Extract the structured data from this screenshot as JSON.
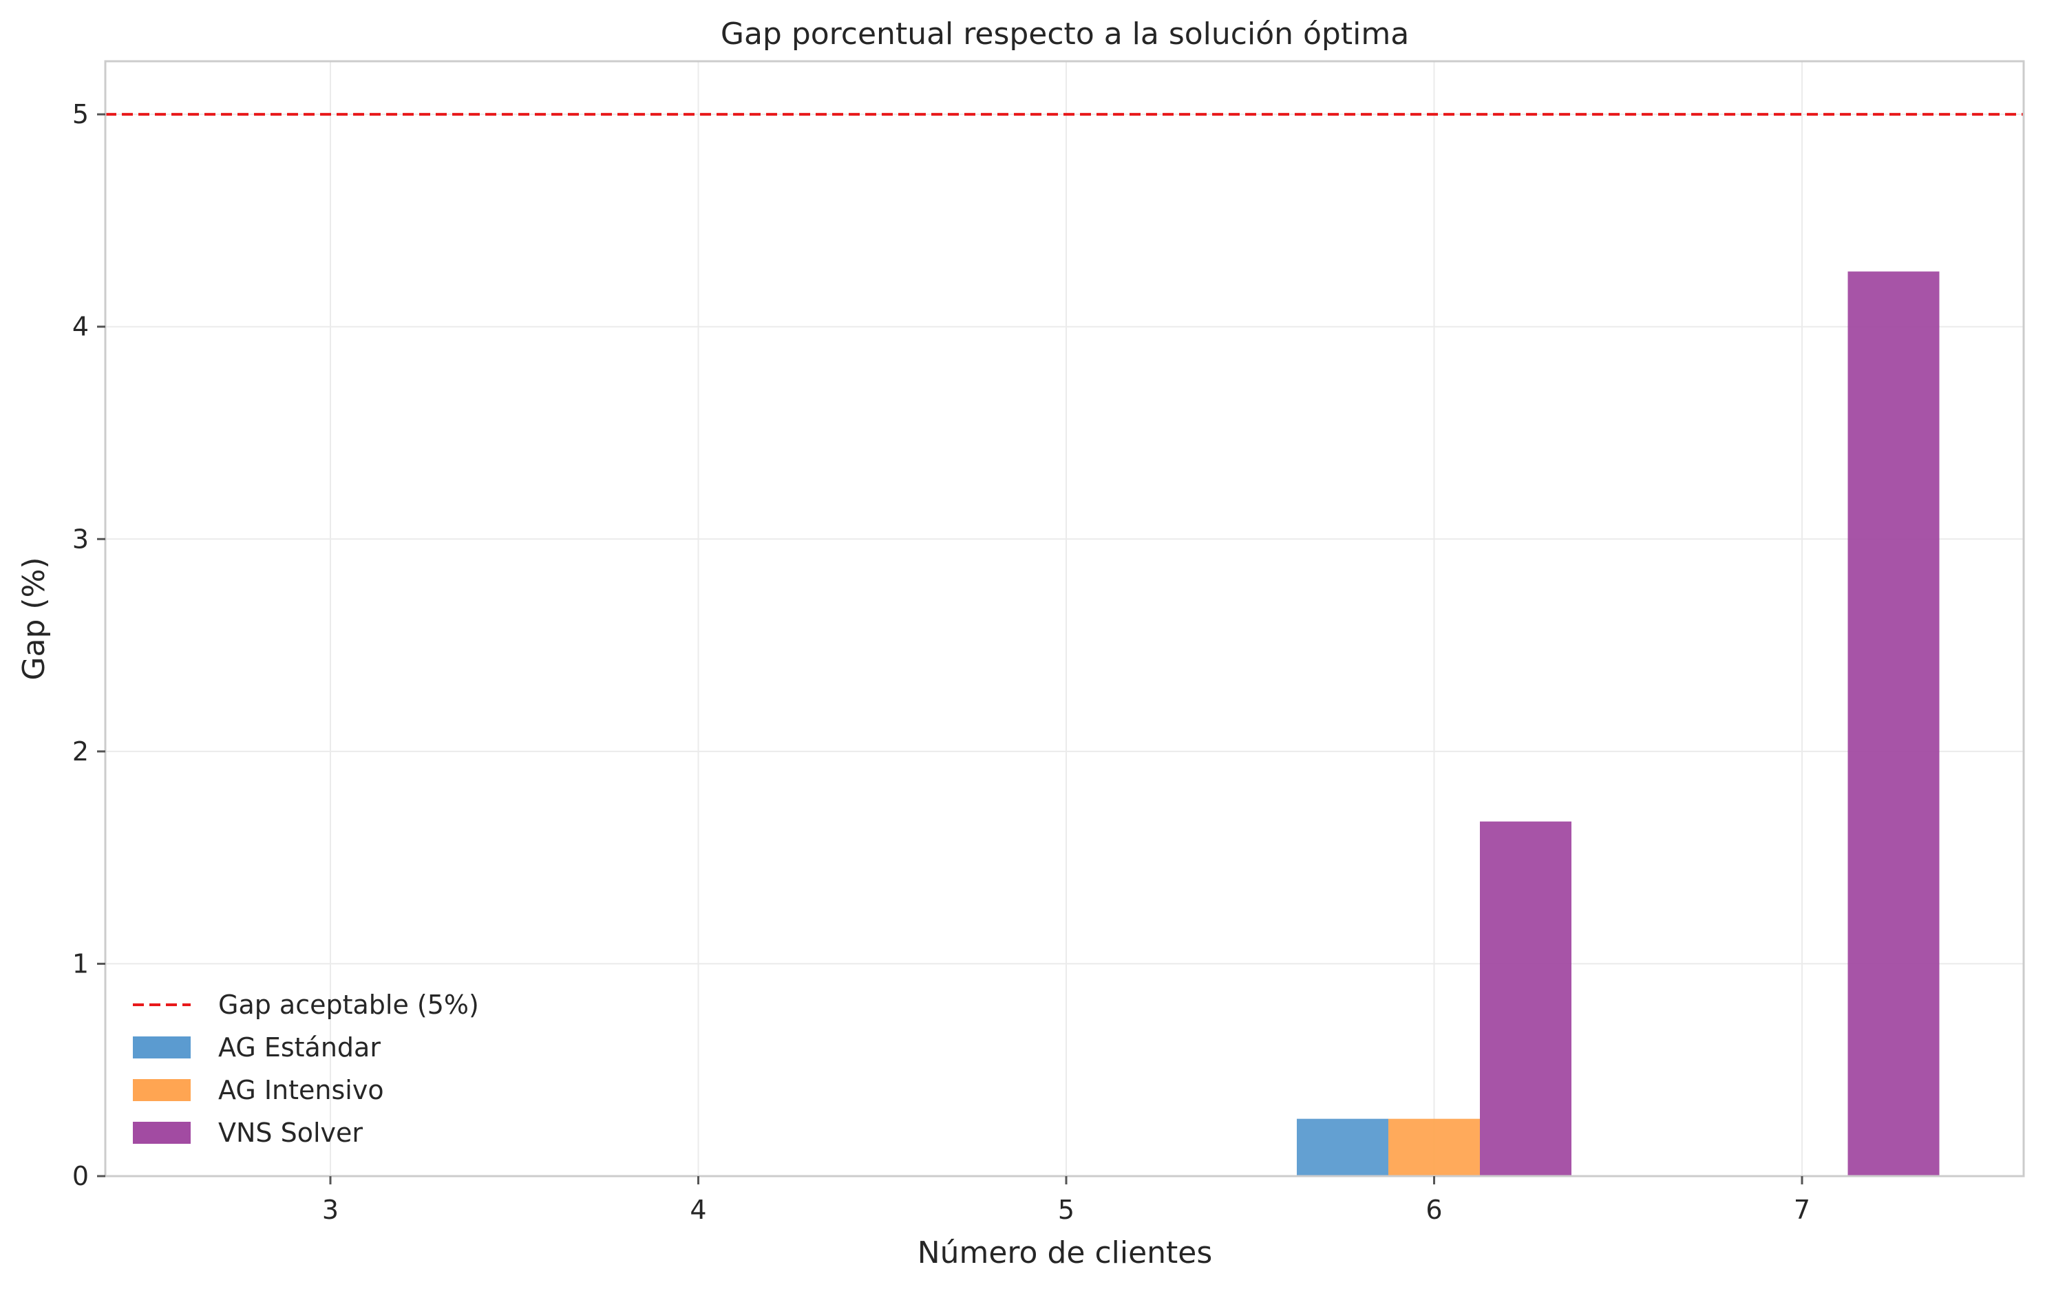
{
  "chart_data": {
    "type": "bar",
    "title": "Gap porcentual respecto a la solución óptima",
    "xlabel": "Número de clientes",
    "ylabel": "Gap (%)",
    "categories": [
      "3",
      "4",
      "5",
      "6",
      "7"
    ],
    "ylim": [
      0,
      5.25
    ],
    "yticks": [
      "0",
      "1",
      "2",
      "3",
      "4",
      "5"
    ],
    "grid": true,
    "legend_position": "lower-left",
    "series": [
      {
        "name": "AG Estándar",
        "color": "#5b9bd0",
        "values": [
          0,
          0,
          0,
          0.27,
          0
        ]
      },
      {
        "name": "AG Intensivo",
        "color": "#ffa552",
        "values": [
          0,
          0,
          0,
          0.27,
          0
        ]
      },
      {
        "name": "VNS Solver",
        "color": "#a24ba2",
        "values": [
          0,
          0,
          0,
          1.67,
          4.26
        ]
      }
    ],
    "reference_line": {
      "name": "Gap aceptable (5%)",
      "value": 5,
      "color": "#e8191b",
      "style": "dashed"
    }
  }
}
